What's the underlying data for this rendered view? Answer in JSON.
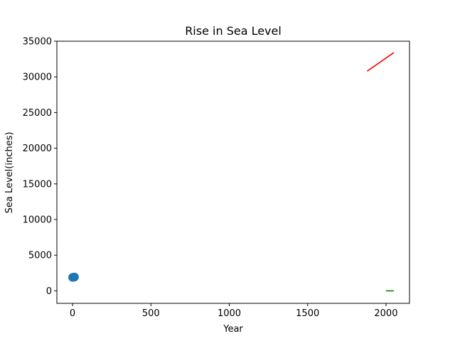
{
  "chart_data": {
    "type": "scatter",
    "title": "Rise in Sea Level",
    "xlabel": "Year",
    "ylabel": "Sea Level(inches)",
    "xlim": [
      -100,
      2150
    ],
    "ylim": [
      -1750,
      35000
    ],
    "grid": false,
    "legend": "none",
    "xticks": [
      0,
      500,
      1000,
      1500,
      2000
    ],
    "xtick_labels": [
      "0",
      "500",
      "1000",
      "1500",
      "2000"
    ],
    "yticks": [
      0,
      5000,
      10000,
      15000,
      20000,
      25000,
      30000,
      35000
    ],
    "ytick_labels": [
      "0",
      "5000",
      "10000",
      "15000",
      "20000",
      "25000",
      "30000",
      "35000"
    ],
    "series": [
      {
        "kind": "scatter",
        "color": "#1f77b4",
        "x": [
          0,
          1,
          2,
          3,
          4,
          5,
          6,
          7,
          8,
          9,
          10,
          11,
          12,
          13
        ],
        "y": [
          1880,
          1885,
          1890,
          1895,
          1900,
          1905,
          1910,
          1915,
          1920,
          1925,
          1930,
          1935,
          1940,
          1945
        ]
      },
      {
        "kind": "line",
        "color": "#ff0000",
        "x": [
          1880,
          2050
        ],
        "y": [
          30800,
          33400
        ]
      },
      {
        "kind": "line",
        "color": "#008000",
        "x": [
          2000,
          2050
        ],
        "y": [
          0,
          0
        ]
      }
    ]
  }
}
